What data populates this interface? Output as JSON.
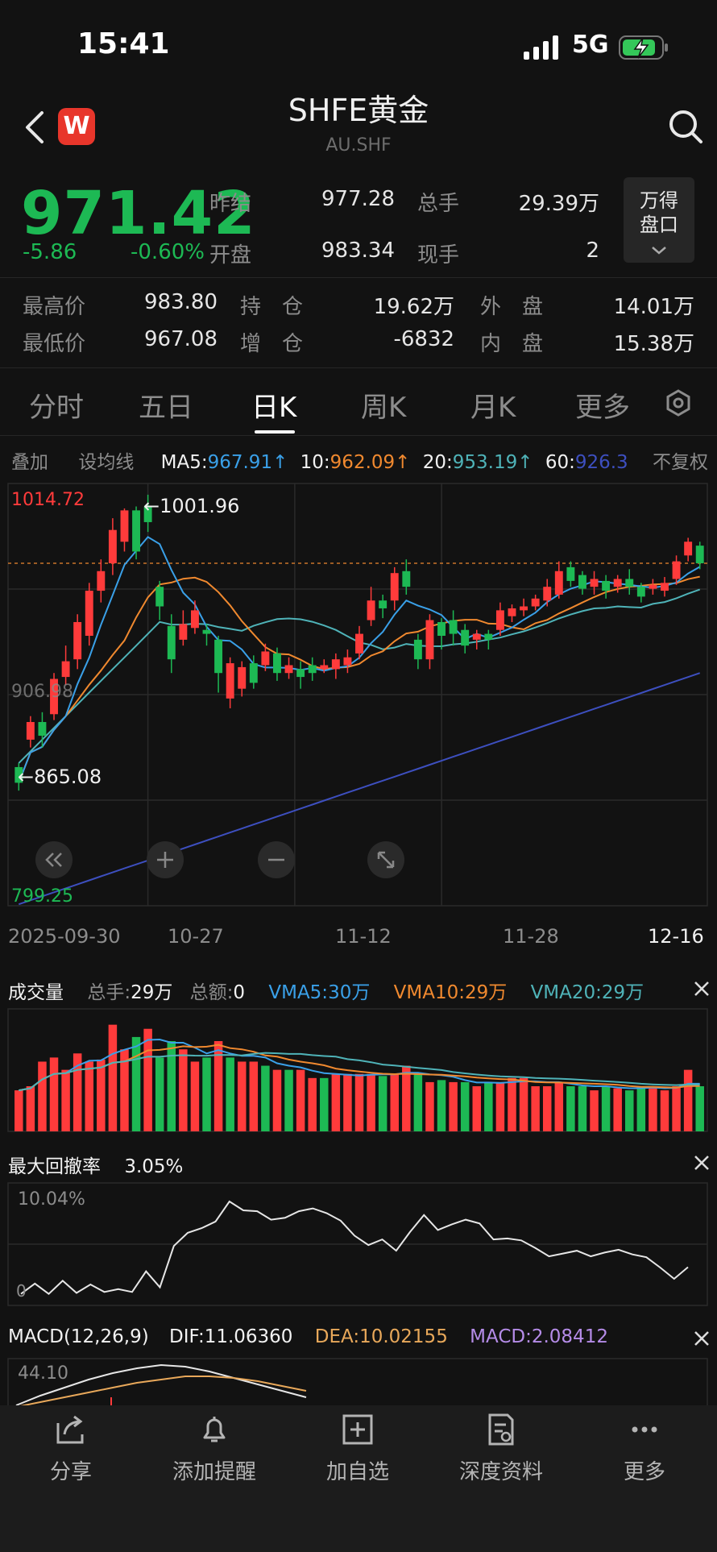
{
  "status": {
    "time": "15:41",
    "network": "5G"
  },
  "header": {
    "title": "SHFE黄金",
    "subtitle": "AU.SHF",
    "app_logo": "W"
  },
  "quote": {
    "price": "971.42",
    "change": "-5.86",
    "change_pct": "-0.60%",
    "rows": [
      {
        "l1": "昨结",
        "v1": "977.28",
        "l2": "总手",
        "v2": "29.39万"
      },
      {
        "l1": "开盘",
        "v1": "983.34",
        "l2": "现手",
        "v2": "2"
      }
    ],
    "wind_button": [
      "万得",
      "盘口"
    ],
    "stats": [
      {
        "l1": "最高价",
        "v1": "983.80",
        "l2": "持　仓",
        "v2": "19.62万",
        "l3": "外　盘",
        "v3": "14.01万"
      },
      {
        "l1": "最低价",
        "v1": "967.08",
        "l2": "增　仓",
        "v2": "-6832",
        "l3": "内　盘",
        "v3": "15.38万"
      }
    ]
  },
  "tabs": [
    "分时",
    "五日",
    "日K",
    "周K",
    "月K",
    "更多"
  ],
  "ma_row": {
    "overlay": "叠加",
    "set_ma": "设均线",
    "ma5_label": "MA5:",
    "ma5_value": "967.91↑",
    "ma10_label": "10:",
    "ma10_value": "962.09↑",
    "ma20_label": "20:",
    "ma20_value": "953.19↑",
    "ma60_label": "60:",
    "ma60_value": "926.3",
    "no_adjust": "不复权"
  },
  "colors": {
    "up": "#ff3b3b",
    "down": "#1db954",
    "ma5": "#3aa0e8",
    "ma10": "#f0892f",
    "ma20": "#4fb3b8",
    "ma60": "#3d4fbf",
    "dea": "#e8a85a",
    "macd": "#b58ce8"
  },
  "chart_data": {
    "type": "candlestick",
    "y_max_label": "1014.72",
    "y_min_label": "799.25",
    "y_mid_label": "906.98",
    "high_annotation": "1001.96",
    "low_annotation": "865.08",
    "dates": [
      "2025-09-30",
      "10-27",
      "11-12",
      "11-28",
      "12-16"
    ],
    "ylim": [
      799.25,
      1014.72
    ],
    "candles": [
      {
        "o": 870,
        "c": 862,
        "h": 872,
        "l": 858
      },
      {
        "o": 884,
        "c": 893,
        "h": 896,
        "l": 880
      },
      {
        "o": 893,
        "c": 886,
        "h": 898,
        "l": 880
      },
      {
        "o": 897,
        "c": 915,
        "h": 918,
        "l": 894
      },
      {
        "o": 916,
        "c": 924,
        "h": 932,
        "l": 912
      },
      {
        "o": 925,
        "c": 944,
        "h": 948,
        "l": 920
      },
      {
        "o": 937,
        "c": 960,
        "h": 964,
        "l": 932
      },
      {
        "o": 960,
        "c": 970,
        "h": 976,
        "l": 954
      },
      {
        "o": 974,
        "c": 991,
        "h": 997,
        "l": 968
      },
      {
        "o": 985,
        "c": 1001,
        "h": 1002,
        "l": 980
      },
      {
        "o": 1001,
        "c": 980,
        "h": 1003,
        "l": 976
      },
      {
        "o": 1003,
        "c": 995,
        "h": 1009,
        "l": 990
      },
      {
        "o": 962,
        "c": 952,
        "h": 965,
        "l": 945
      },
      {
        "o": 942,
        "c": 925,
        "h": 948,
        "l": 918
      },
      {
        "o": 935,
        "c": 943,
        "h": 950,
        "l": 932
      },
      {
        "o": 941,
        "c": 950,
        "h": 955,
        "l": 938
      },
      {
        "o": 940,
        "c": 938,
        "h": 943,
        "l": 932
      },
      {
        "o": 935,
        "c": 918,
        "h": 937,
        "l": 908
      },
      {
        "o": 905,
        "c": 923,
        "h": 926,
        "l": 900
      },
      {
        "o": 910,
        "c": 921,
        "h": 924,
        "l": 906
      },
      {
        "o": 923,
        "c": 913,
        "h": 927,
        "l": 910
      },
      {
        "o": 922,
        "c": 929,
        "h": 933,
        "l": 919
      },
      {
        "o": 928,
        "c": 918,
        "h": 931,
        "l": 914
      },
      {
        "o": 918,
        "c": 922,
        "h": 926,
        "l": 915
      },
      {
        "o": 920,
        "c": 916,
        "h": 924,
        "l": 910
      },
      {
        "o": 922,
        "c": 918,
        "h": 926,
        "l": 914
      },
      {
        "o": 920,
        "c": 922,
        "h": 925,
        "l": 918
      },
      {
        "o": 920,
        "c": 925,
        "h": 928,
        "l": 915
      },
      {
        "o": 922,
        "c": 926,
        "h": 930,
        "l": 918
      },
      {
        "o": 928,
        "c": 938,
        "h": 942,
        "l": 925
      },
      {
        "o": 945,
        "c": 955,
        "h": 962,
        "l": 942
      },
      {
        "o": 955,
        "c": 951,
        "h": 958,
        "l": 946
      },
      {
        "o": 955,
        "c": 969,
        "h": 972,
        "l": 950
      },
      {
        "o": 970,
        "c": 962,
        "h": 976,
        "l": 958
      },
      {
        "o": 935,
        "c": 925,
        "h": 938,
        "l": 920
      },
      {
        "o": 925,
        "c": 945,
        "h": 948,
        "l": 920
      },
      {
        "o": 944,
        "c": 937,
        "h": 946,
        "l": 930
      },
      {
        "o": 945,
        "c": 938,
        "h": 950,
        "l": 932
      },
      {
        "o": 940,
        "c": 932,
        "h": 943,
        "l": 928
      },
      {
        "o": 935,
        "c": 938,
        "h": 940,
        "l": 930
      },
      {
        "o": 938,
        "c": 935,
        "h": 940,
        "l": 930
      },
      {
        "o": 940,
        "c": 950,
        "h": 954,
        "l": 937
      },
      {
        "o": 947,
        "c": 951,
        "h": 953,
        "l": 944
      },
      {
        "o": 950,
        "c": 952,
        "h": 956,
        "l": 947
      },
      {
        "o": 952,
        "c": 956,
        "h": 958,
        "l": 950
      },
      {
        "o": 955,
        "c": 962,
        "h": 966,
        "l": 952
      },
      {
        "o": 958,
        "c": 970,
        "h": 975,
        "l": 956
      },
      {
        "o": 972,
        "c": 965,
        "h": 975,
        "l": 962
      },
      {
        "o": 968,
        "c": 961,
        "h": 970,
        "l": 958
      },
      {
        "o": 962,
        "c": 966,
        "h": 970,
        "l": 958
      },
      {
        "o": 965,
        "c": 960,
        "h": 968,
        "l": 956
      },
      {
        "o": 962,
        "c": 966,
        "h": 968,
        "l": 959
      },
      {
        "o": 966,
        "c": 962,
        "h": 971,
        "l": 958
      },
      {
        "o": 962,
        "c": 957,
        "h": 964,
        "l": 954
      },
      {
        "o": 961,
        "c": 963,
        "h": 966,
        "l": 958
      },
      {
        "o": 960,
        "c": 964,
        "h": 967,
        "l": 957
      },
      {
        "o": 966,
        "c": 975,
        "h": 978,
        "l": 963
      },
      {
        "o": 978,
        "c": 985,
        "h": 987,
        "l": 975
      },
      {
        "o": 983,
        "c": 974,
        "h": 985,
        "l": 971
      }
    ]
  },
  "volume": {
    "title": "成交量",
    "total_hands_label": "总手:",
    "total_hands": "29万",
    "amount_label": "总额:",
    "amount": "0",
    "vma5_label": "VMA5:",
    "vma5": "30万",
    "vma10_label": "VMA10:",
    "vma10": "29万",
    "vma20_label": "VMA20:",
    "vma20": "29万",
    "values": [
      20,
      22,
      34,
      36,
      30,
      38,
      34,
      35,
      52,
      40,
      46,
      50,
      36,
      44,
      40,
      34,
      36,
      44,
      36,
      34,
      34,
      32,
      30,
      30,
      30,
      26,
      26,
      28,
      28,
      28,
      28,
      27,
      28,
      32,
      28,
      24,
      25,
      24,
      24,
      22,
      24,
      24,
      26,
      26,
      22,
      22,
      24,
      22,
      22,
      20,
      22,
      21,
      20,
      22,
      22,
      20,
      22,
      30,
      22
    ],
    "up": [
      true,
      true,
      true,
      true,
      true,
      true,
      true,
      true,
      true,
      true,
      false,
      true,
      false,
      false,
      true,
      true,
      false,
      true,
      false,
      true,
      true,
      false,
      true,
      false,
      true,
      true,
      false,
      true,
      true,
      true,
      true,
      false,
      true,
      true,
      false,
      true,
      false,
      true,
      false,
      true,
      false,
      true,
      true,
      true,
      true,
      true,
      true,
      false,
      false,
      true,
      false,
      true,
      false,
      false,
      true,
      true,
      true,
      true,
      false
    ]
  },
  "drawdown": {
    "title": "最大回撤率",
    "value": "3.05%",
    "top_label": "10.04%",
    "bottom_label": "0"
  },
  "macd": {
    "title": "MACD(12,26,9)",
    "dif_label": "DIF:",
    "dif": "11.06360",
    "dea_label": "DEA:",
    "dea": "10.02155",
    "macd_label": "MACD:",
    "macd": "2.08412",
    "top_label": "44.10"
  },
  "bottom_bar": [
    {
      "label": "分享",
      "icon": "share-icon"
    },
    {
      "label": "添加提醒",
      "icon": "bell-icon"
    },
    {
      "label": "加自选",
      "icon": "add-watchlist-icon"
    },
    {
      "label": "深度资料",
      "icon": "document-icon"
    },
    {
      "label": "更多",
      "icon": "more-icon"
    }
  ]
}
